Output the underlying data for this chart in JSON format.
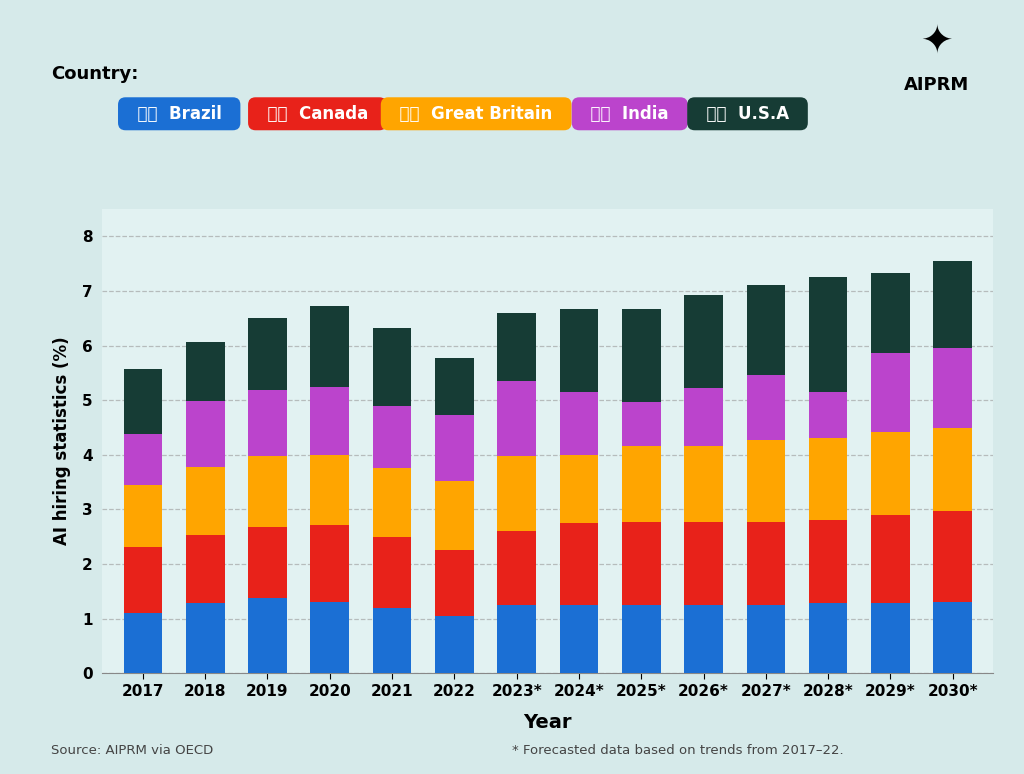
{
  "years": [
    "2017",
    "2018",
    "2019",
    "2020",
    "2021",
    "2022",
    "2023*",
    "2024*",
    "2025*",
    "2026*",
    "2027*",
    "2028*",
    "2029*",
    "2030*"
  ],
  "brazil": [
    1.1,
    1.28,
    1.38,
    1.3,
    1.2,
    1.05,
    1.25,
    1.25,
    1.25,
    1.25,
    1.25,
    1.28,
    1.28,
    1.3
  ],
  "canada": [
    1.22,
    1.25,
    1.3,
    1.42,
    1.3,
    1.2,
    1.35,
    1.5,
    1.52,
    1.52,
    1.52,
    1.52,
    1.62,
    1.68
  ],
  "great_britain": [
    1.12,
    1.25,
    1.3,
    1.28,
    1.25,
    1.28,
    1.38,
    1.25,
    1.4,
    1.4,
    1.5,
    1.5,
    1.52,
    1.52
  ],
  "india": [
    0.95,
    1.2,
    1.2,
    1.25,
    1.15,
    1.2,
    1.38,
    1.15,
    0.8,
    1.05,
    1.2,
    0.85,
    1.45,
    1.45
  ],
  "usa": [
    1.18,
    1.08,
    1.32,
    1.48,
    1.42,
    1.05,
    1.24,
    1.52,
    1.7,
    1.7,
    1.63,
    2.1,
    1.45,
    1.6
  ],
  "bar_color_brazil": "#1B6FD4",
  "bar_color_canada": "#E8221A",
  "bar_color_great_britain": "#FFA500",
  "bar_color_india": "#BB44CC",
  "bar_color_usa": "#163C35",
  "legend_pill_colors": [
    "#1B6FD4",
    "#E8221A",
    "#FFA500",
    "#BB44CC",
    "#163C35"
  ],
  "legend_labels": [
    "Brazil",
    "Canada",
    "Great Britain",
    "India",
    "U.S.A"
  ],
  "background_color": "#D6EAEA",
  "plot_bg_color": "#E2F2F2",
  "ylabel": "AI hiring statistics (%)",
  "xlabel": "Year",
  "ylim": [
    0,
    8.5
  ],
  "yticks": [
    0,
    1,
    2,
    3,
    4,
    5,
    6,
    7,
    8
  ],
  "source_text": "Source: AIPRM via OECD",
  "note_text": "* Forecasted data based on trends from 2017–22.",
  "country_label": "Country:"
}
